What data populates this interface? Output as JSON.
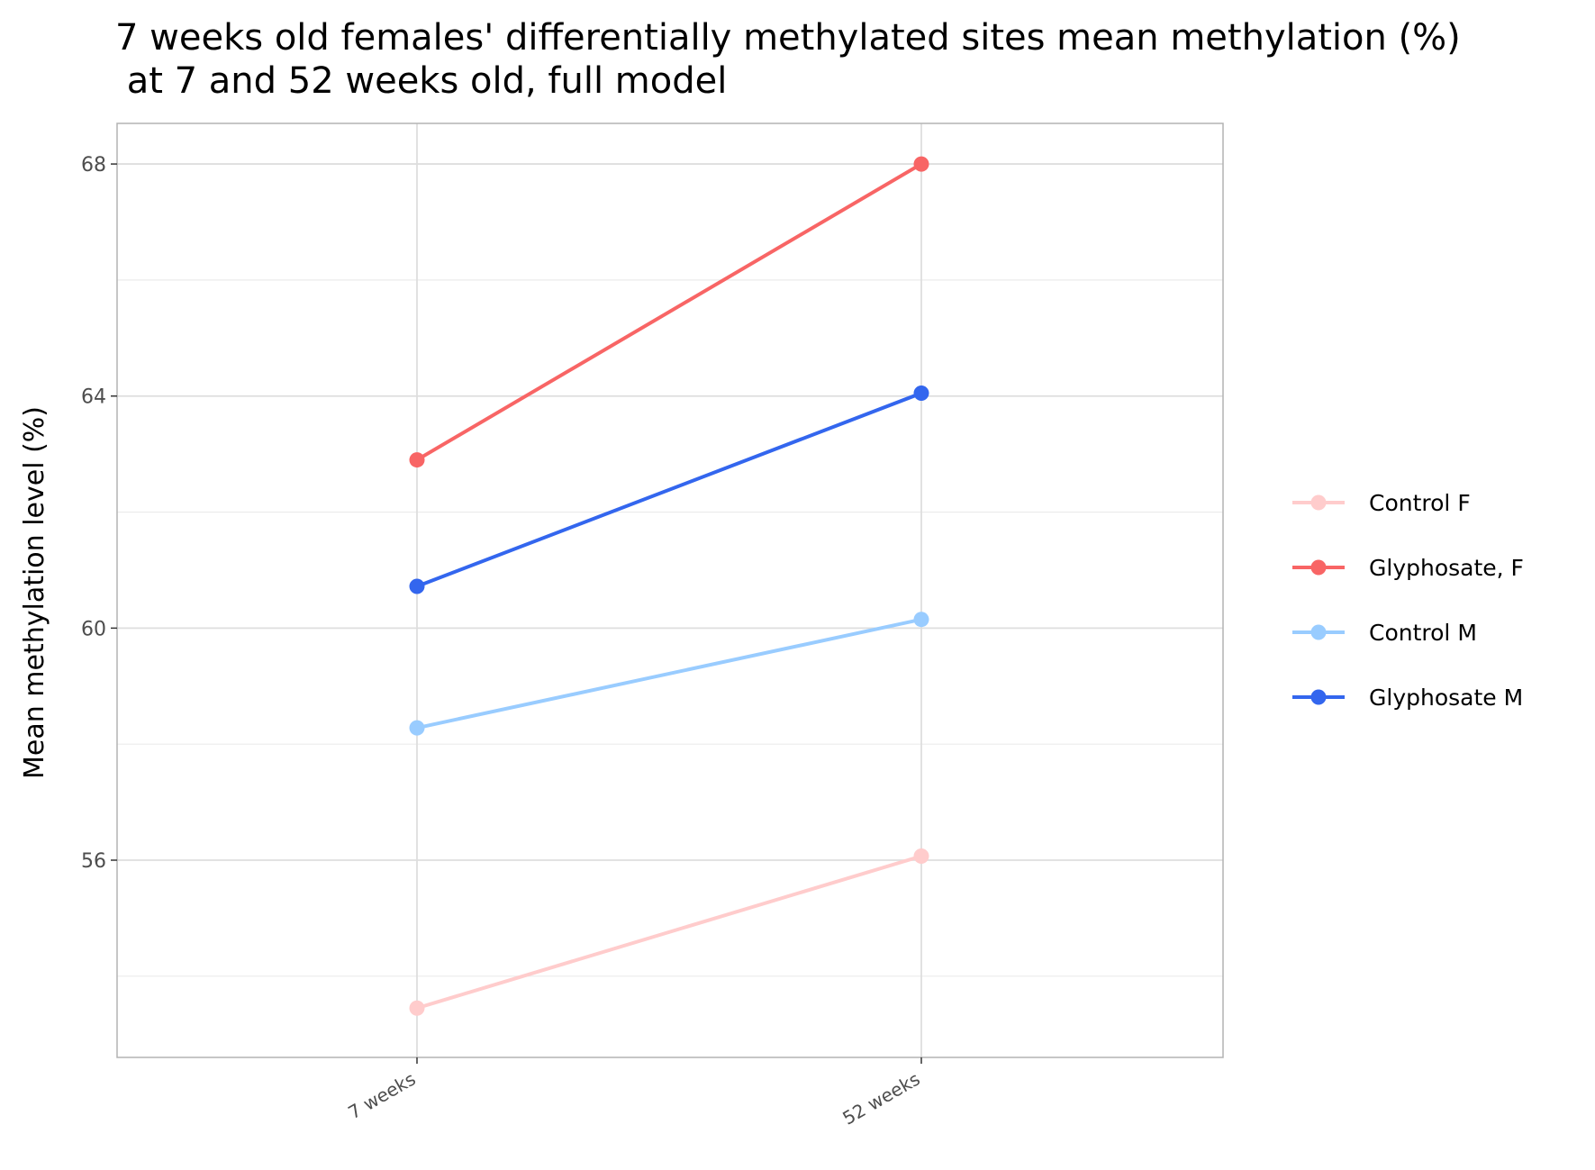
{
  "chart_data": {
    "type": "line",
    "title_lines": [
      "7 weeks old females' differentially methylated sites mean methylation (%)",
      " at 7 and 52 weeks old, full model"
    ],
    "xlabel": "",
    "ylabel": "Mean methylation level (%)",
    "categories": [
      "7 weeks",
      "52 weeks"
    ],
    "ylim": [
      52.6,
      68.7
    ],
    "yticks_major": [
      56,
      60,
      64,
      68
    ],
    "yticks_minor": [
      54,
      58,
      62,
      66
    ],
    "grid": true,
    "legend_position": "right",
    "series": [
      {
        "name": "Control F",
        "color": "#ffcccc",
        "values": [
          53.45,
          56.07
        ]
      },
      {
        "name": "Glyphosate, F",
        "color": "#f86565",
        "values": [
          62.9,
          68.0
        ]
      },
      {
        "name": "Control M",
        "color": "#99ccff",
        "values": [
          58.28,
          60.15
        ]
      },
      {
        "name": "Glyphosate M",
        "color": "#3366ee",
        "values": [
          60.72,
          64.05
        ]
      }
    ]
  }
}
